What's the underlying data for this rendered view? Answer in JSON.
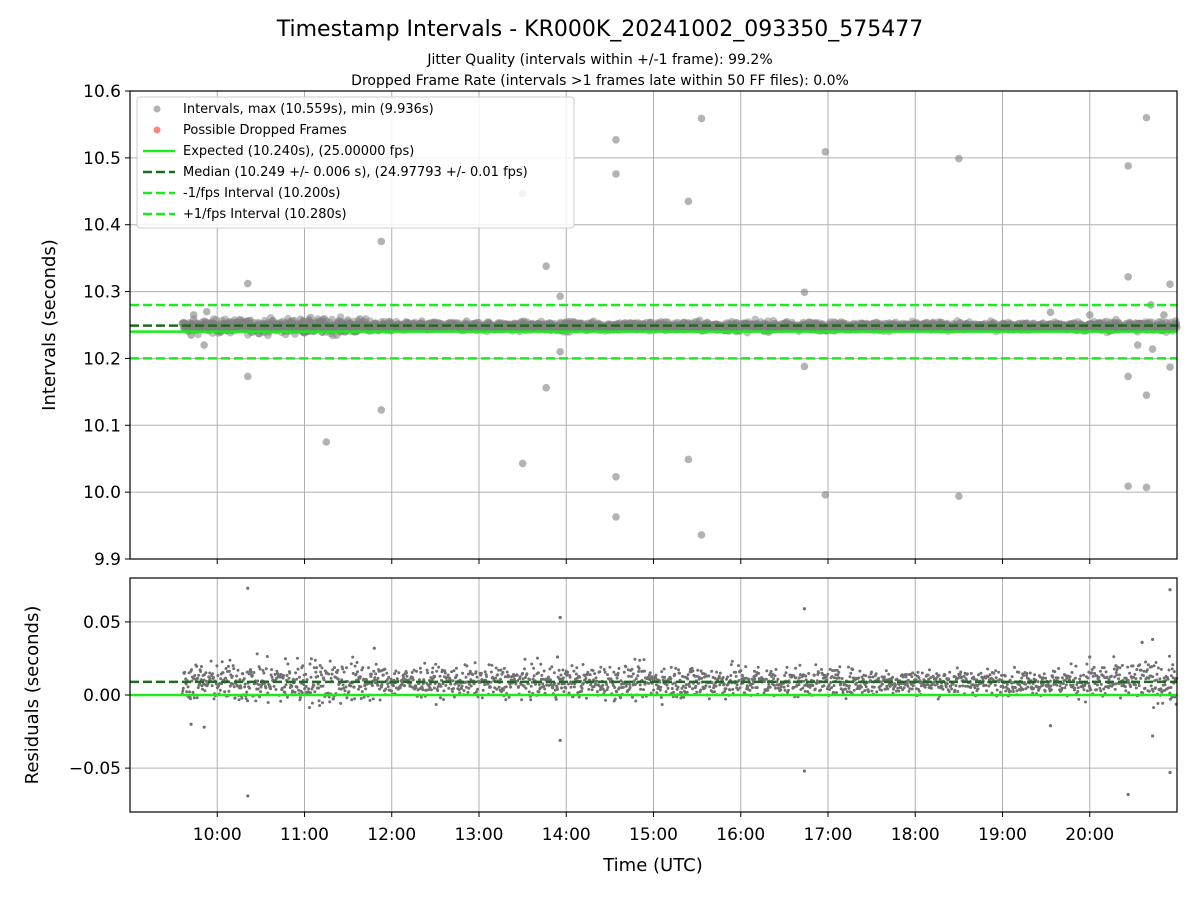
{
  "chart_data": [
    {
      "type": "scatter",
      "title": "Timestamp Intervals - KR000K_20241002_093350_575477",
      "subtitle_1": "Jitter Quality (intervals within +/-1 frame): 99.2%",
      "subtitle_2": "Dropped Frame Rate (intervals >1 frames late within 50 FF files): 0.0%",
      "ylabel": "Intervals (seconds)",
      "ylim": [
        9.9,
        10.6
      ],
      "yticks": [
        "9.9",
        "10.0",
        "10.1",
        "10.2",
        "10.3",
        "10.4",
        "10.5",
        "10.6"
      ],
      "xlim_hours": [
        9.0,
        21.0
      ],
      "grid": true,
      "legend_placement": "upper-left",
      "legend": [
        "Intervals, max (10.559s), min (9.936s)",
        "Possible Dropped Frames",
        "Expected (10.240s), (25.00000 fps)",
        "Median (10.249 +/- 0.006 s), (24.97793 +/- 0.01 fps)",
        "-1/fps Interval (10.200s)",
        "+1/fps Interval (10.280s)"
      ],
      "reference_lines": {
        "expected": 10.24,
        "median": 10.249,
        "minus_1_fps": 10.2,
        "plus_1_fps": 10.28
      },
      "series": [
        {
          "name": "Intervals, max (10.559s), min (9.936s)",
          "band": {
            "start_hour": 9.6,
            "end_hour": 21.0,
            "center": 10.248,
            "half_width_by_time": [
              [
                9.6,
                0.01
              ],
              [
                11.0,
                0.012
              ],
              [
                11.6,
                0.012
              ],
              [
                12.0,
                0.007
              ],
              [
                16.0,
                0.008
              ],
              [
                17.0,
                0.007
              ],
              [
                19.5,
                0.006
              ],
              [
                20.0,
                0.008
              ],
              [
                21.0,
                0.009
              ]
            ]
          },
          "outliers": [
            [
              9.7,
              10.235
            ],
            [
              9.73,
              10.265
            ],
            [
              9.88,
              10.27
            ],
            [
              9.85,
              10.22
            ],
            [
              10.35,
              10.312
            ],
            [
              10.35,
              10.173
            ],
            [
              11.25,
              10.075
            ],
            [
              11.88,
              10.375
            ],
            [
              11.88,
              10.123
            ],
            [
              13.5,
              10.447
            ],
            [
              13.5,
              10.043
            ],
            [
              13.77,
              10.338
            ],
            [
              13.77,
              10.156
            ],
            [
              13.93,
              10.293
            ],
            [
              13.93,
              10.21
            ],
            [
              14.57,
              10.527
            ],
            [
              14.57,
              10.476
            ],
            [
              14.57,
              10.023
            ],
            [
              14.57,
              9.963
            ],
            [
              15.4,
              10.435
            ],
            [
              15.4,
              10.049
            ],
            [
              15.55,
              10.559
            ],
            [
              15.55,
              9.936
            ],
            [
              16.73,
              10.299
            ],
            [
              16.73,
              10.188
            ],
            [
              16.97,
              10.509
            ],
            [
              16.97,
              9.996
            ],
            [
              18.5,
              10.499
            ],
            [
              18.5,
              9.994
            ],
            [
              19.55,
              10.269
            ],
            [
              20.0,
              10.265
            ],
            [
              20.44,
              10.488
            ],
            [
              20.44,
              10.322
            ],
            [
              20.44,
              10.173
            ],
            [
              20.44,
              10.009
            ],
            [
              20.65,
              10.56
            ],
            [
              20.65,
              10.145
            ],
            [
              20.65,
              10.007
            ],
            [
              20.7,
              10.28
            ],
            [
              20.72,
              10.214
            ],
            [
              20.92,
              10.311
            ],
            [
              20.92,
              10.187
            ],
            [
              20.55,
              10.22
            ],
            [
              20.85,
              10.265
            ]
          ]
        },
        {
          "name": "Possible Dropped Frames",
          "points": []
        }
      ]
    },
    {
      "type": "scatter",
      "ylabel": "Residuals (seconds)",
      "xlabel": "Time (UTC)",
      "ylim": [
        -0.08,
        0.08
      ],
      "yticks": [
        "−0.05",
        "0.00",
        "0.05"
      ],
      "xticks": [
        "10:00",
        "11:00",
        "12:00",
        "13:00",
        "14:00",
        "15:00",
        "16:00",
        "17:00",
        "18:00",
        "19:00",
        "20:00"
      ],
      "xlim_hours": [
        9.0,
        21.0
      ],
      "reference_lines": {
        "zero": 0.0,
        "median_offset": 0.009
      },
      "series": [
        {
          "band": {
            "start_hour": 9.6,
            "end_hour": 21.0,
            "center": 0.009,
            "half_width_by_time": [
              [
                9.6,
                0.012
              ],
              [
                11.0,
                0.016
              ],
              [
                11.6,
                0.015
              ],
              [
                12.0,
                0.01
              ],
              [
                16.0,
                0.012
              ],
              [
                17.0,
                0.009
              ],
              [
                19.5,
                0.008
              ],
              [
                20.0,
                0.012
              ],
              [
                21.0,
                0.014
              ]
            ]
          },
          "outliers": [
            [
              10.35,
              0.073
            ],
            [
              10.35,
              -0.069
            ],
            [
              13.93,
              0.053
            ],
            [
              13.93,
              -0.031
            ],
            [
              16.73,
              0.059
            ],
            [
              16.73,
              -0.052
            ],
            [
              20.44,
              -0.068
            ],
            [
              20.6,
              0.036
            ],
            [
              20.72,
              0.038
            ],
            [
              20.72,
              -0.028
            ],
            [
              20.92,
              0.072
            ],
            [
              20.92,
              -0.053
            ],
            [
              9.7,
              -0.02
            ],
            [
              9.85,
              -0.022
            ],
            [
              19.55,
              -0.021
            ],
            [
              20.0,
              0.026
            ],
            [
              20.3,
              0.02
            ],
            [
              11.8,
              0.032
            ],
            [
              13.9,
              0.026
            ]
          ]
        }
      ]
    }
  ],
  "colors": {
    "points": "#808080",
    "points_small": "#707070",
    "dropped": "#ff6666",
    "expected": "#1aee1a",
    "median": "#1e6a1e",
    "fps_lines": "#1aee1a",
    "grid": "#b0b0b0"
  }
}
